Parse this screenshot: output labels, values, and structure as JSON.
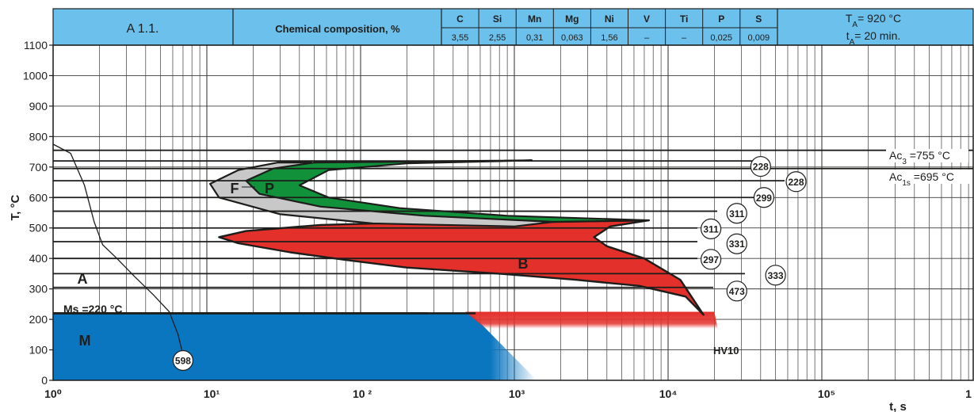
{
  "header": {
    "sample_id": "A 1.1.",
    "composition_label": "Chemical composition, %",
    "elements": [
      {
        "symbol": "C",
        "value": "3,55"
      },
      {
        "symbol": "Si",
        "value": "2,55"
      },
      {
        "symbol": "Mn",
        "value": "0,31"
      },
      {
        "symbol": "Mg",
        "value": "0,063"
      },
      {
        "symbol": "Ni",
        "value": "1,56"
      },
      {
        "symbol": "V",
        "value": "–"
      },
      {
        "symbol": "Ti",
        "value": "–"
      },
      {
        "symbol": "P",
        "value": "0,025"
      },
      {
        "symbol": "S",
        "value": "0,009"
      }
    ],
    "austenitizing_temp": {
      "prefix": "T",
      "sub": "A",
      "text": "= 920 °C"
    },
    "austenitizing_time": {
      "prefix": "t",
      "sub": "A",
      "text": "= 20 min."
    }
  },
  "chart_data": {
    "type": "line",
    "subtype": "CCT diagram",
    "xscale": "log",
    "xlim": [
      1,
      1000000
    ],
    "ylim": [
      0,
      1100
    ],
    "xlabel": "t, s",
    "ylabel": "T, °C",
    "x_ticks": [
      "10⁰",
      "10¹",
      "10 ²",
      "10³",
      "10⁴",
      "10⁵",
      "1"
    ],
    "y_ticks": [
      "0",
      "100",
      "200",
      "300",
      "400",
      "500",
      "600",
      "700",
      "800",
      "900",
      "1000",
      "1100"
    ],
    "grid": true,
    "colors": {
      "header_bg": "#6cc0ec",
      "ferrite": "#c8c8c8",
      "pearlite": "#11913a",
      "bainite": "#e3302b",
      "martensite": "#0a76c0"
    },
    "regions": [
      {
        "label": "F",
        "phase": "ferrite"
      },
      {
        "label": "P",
        "phase": "pearlite"
      },
      {
        "label": "B",
        "phase": "bainite"
      },
      {
        "label": "M",
        "phase": "martensite"
      },
      {
        "label": "A",
        "phase": "austenite"
      }
    ],
    "region_boundaries": {
      "ferrite": [
        [
          29,
          715
        ],
        [
          16,
          690
        ],
        [
          10.5,
          645
        ],
        [
          12,
          600
        ],
        [
          30,
          545
        ],
        [
          120,
          515
        ],
        [
          1000,
          505
        ],
        [
          1800,
          520
        ],
        [
          350,
          545
        ],
        [
          90,
          570
        ],
        [
          30,
          600
        ],
        [
          22,
          640
        ],
        [
          35,
          695
        ],
        [
          48,
          715
        ]
      ],
      "pearlite": [
        [
          50,
          715
        ],
        [
          27,
          695
        ],
        [
          18,
          655
        ],
        [
          22,
          612
        ],
        [
          55,
          570
        ],
        [
          260,
          540
        ],
        [
          1800,
          520
        ],
        [
          7500,
          525
        ],
        [
          900,
          540
        ],
        [
          180,
          565
        ],
        [
          62,
          600
        ],
        [
          40,
          640
        ],
        [
          62,
          690
        ],
        [
          200,
          712
        ],
        [
          1300,
          722
        ]
      ],
      "bainite": [
        [
          1800,
          520
        ],
        [
          7500,
          525
        ],
        [
          4200,
          505
        ],
        [
          3300,
          470
        ],
        [
          4000,
          440
        ],
        [
          7000,
          400
        ],
        [
          12000,
          330
        ],
        [
          17000,
          215
        ],
        [
          13000,
          275
        ],
        [
          6500,
          310
        ],
        [
          2500,
          330
        ],
        [
          800,
          350
        ],
        [
          200,
          370
        ],
        [
          80,
          395
        ],
        [
          35,
          420
        ],
        [
          16,
          450
        ],
        [
          12,
          470
        ],
        [
          18,
          490
        ],
        [
          55,
          510
        ],
        [
          300,
          520
        ]
      ],
      "martensite_top": 220,
      "austenite_cooling_curve": [
        [
          1,
          775
        ],
        [
          1.3,
          745
        ],
        [
          1.6,
          640
        ],
        [
          1.85,
          520
        ],
        [
          2.1,
          445
        ],
        [
          2.6,
          400
        ],
        [
          3.4,
          340
        ],
        [
          4.5,
          280
        ],
        [
          5.7,
          225
        ],
        [
          6.5,
          150
        ],
        [
          7.1,
          70
        ]
      ]
    },
    "isotherms": [
      755,
      720,
      695,
      655,
      600,
      555,
      500,
      455,
      400,
      350,
      305,
      220
    ],
    "annotations": [
      {
        "text": "Ms =220 °C"
      },
      {
        "main": "Ac",
        "sub": "3",
        "text": " =755 °C"
      },
      {
        "main": "Ac",
        "sub": "1s",
        "text": " =695 °C"
      },
      {
        "text": "HV10"
      }
    ],
    "hardness_values": [
      {
        "t": 40000,
        "T": 702,
        "hv": "228"
      },
      {
        "t": 68000,
        "T": 652,
        "hv": "228"
      },
      {
        "t": 42000,
        "T": 600,
        "hv": "299"
      },
      {
        "t": 28000,
        "T": 548,
        "hv": "311"
      },
      {
        "t": 19000,
        "T": 497,
        "hv": "311"
      },
      {
        "t": 28000,
        "T": 448,
        "hv": "331"
      },
      {
        "t": 19000,
        "T": 397,
        "hv": "297"
      },
      {
        "t": 50000,
        "T": 345,
        "hv": "333"
      },
      {
        "t": 28000,
        "T": 293,
        "hv": "473"
      },
      {
        "t": 7,
        "T": 65,
        "hv": "598"
      }
    ]
  }
}
